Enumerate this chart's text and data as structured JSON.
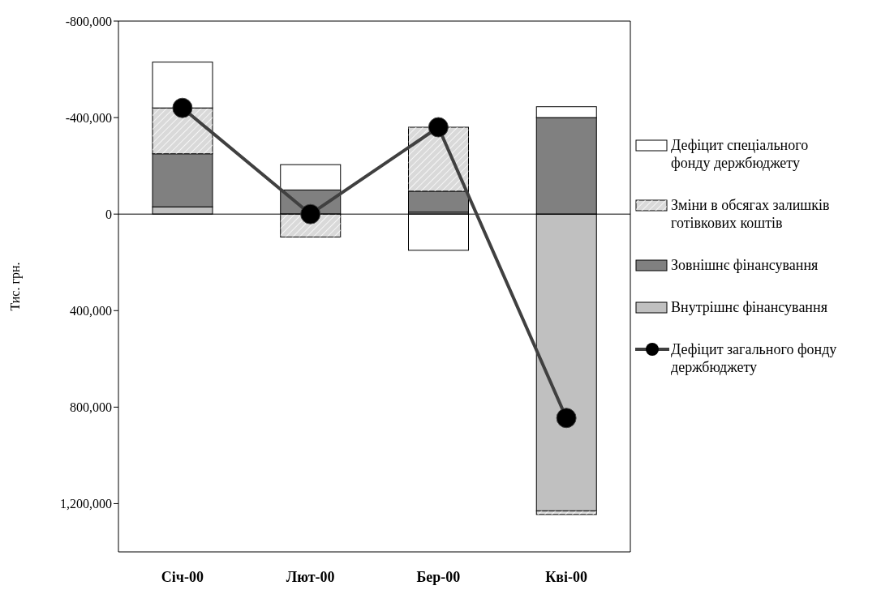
{
  "chart_data": {
    "type": "bar",
    "stacked": true,
    "ylabel": "Тис. грн.",
    "categories": [
      "Січ-00",
      "Лют-00",
      "Бер-00",
      "Кві-00"
    ],
    "ylim": [
      1400000,
      -800000
    ],
    "yticks": [
      {
        "value": -800000,
        "label": "-800,000"
      },
      {
        "value": -400000,
        "label": "-400,000"
      },
      {
        "value": 0,
        "label": "0"
      },
      {
        "value": 400000,
        "label": "400,000"
      },
      {
        "value": 800000,
        "label": "800,000"
      },
      {
        "value": 1200000,
        "label": "1,200,000"
      }
    ],
    "series": [
      {
        "name": "Внутрішнє фінансування",
        "color": "#c0c0c0",
        "values": [
          -30000,
          0,
          -8000,
          1230000
        ]
      },
      {
        "name": "Зовнішнє фінансування",
        "color": "#808080",
        "values": [
          -220000,
          -100000,
          -87000,
          -400000
        ]
      },
      {
        "name": "Зміни в обсягах залишків готівкових коштів",
        "color": "#d9d9d9",
        "values": [
          -190000,
          95000,
          -265000,
          15000
        ]
      },
      {
        "name": "Дефіцит спеціального фонду держбюджету",
        "color": "#ffffff",
        "values": [
          -190000,
          -105000,
          150000,
          -45000
        ]
      },
      {
        "name": "Дефіцит загального фонду держбюджету",
        "type": "line",
        "color": "#404040",
        "values": [
          -440000,
          0,
          -360000,
          845000
        ]
      }
    ],
    "ref_lines": [
      {
        "axis": "y",
        "value": 0,
        "color": "#000000"
      }
    ],
    "grid": false,
    "legend": "right",
    "marker": "circle",
    "line_style": "solid"
  }
}
